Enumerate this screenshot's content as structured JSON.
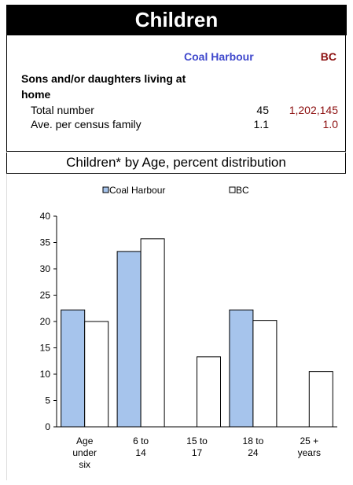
{
  "title": "Children",
  "columns": {
    "area": "Coal Harbour",
    "bc": "BC"
  },
  "section_heading": "Sons and/or daughters living at home",
  "rows": [
    {
      "label": "Total number",
      "area": "45",
      "bc": "1,202,145"
    },
    {
      "label": "Ave. per census family",
      "area": "1.1",
      "bc": "1.0"
    }
  ],
  "colors": {
    "area_bar": "#a6c4ec",
    "bc_bar": "#ffffff",
    "area_text": "#3f48cc",
    "bc_text": "#8b0d0d"
  },
  "chart_data": {
    "type": "bar",
    "title": "Children* by Age, percent distribution",
    "categories": [
      [
        "Age",
        "under",
        "six"
      ],
      [
        "6 to",
        "14"
      ],
      [
        "15 to",
        "17"
      ],
      [
        "18 to",
        "24"
      ],
      [
        "25 +",
        "years"
      ]
    ],
    "series": [
      {
        "name": "Coal Harbour",
        "values": [
          22.2,
          33.3,
          0,
          22.2,
          0
        ]
      },
      {
        "name": "BC",
        "values": [
          20.0,
          35.7,
          13.3,
          20.2,
          10.5
        ]
      }
    ],
    "ylim": [
      0,
      40
    ],
    "yticks": [
      0,
      5,
      10,
      15,
      20,
      25,
      30,
      35,
      40
    ],
    "legend_position": "top",
    "grid": false
  }
}
